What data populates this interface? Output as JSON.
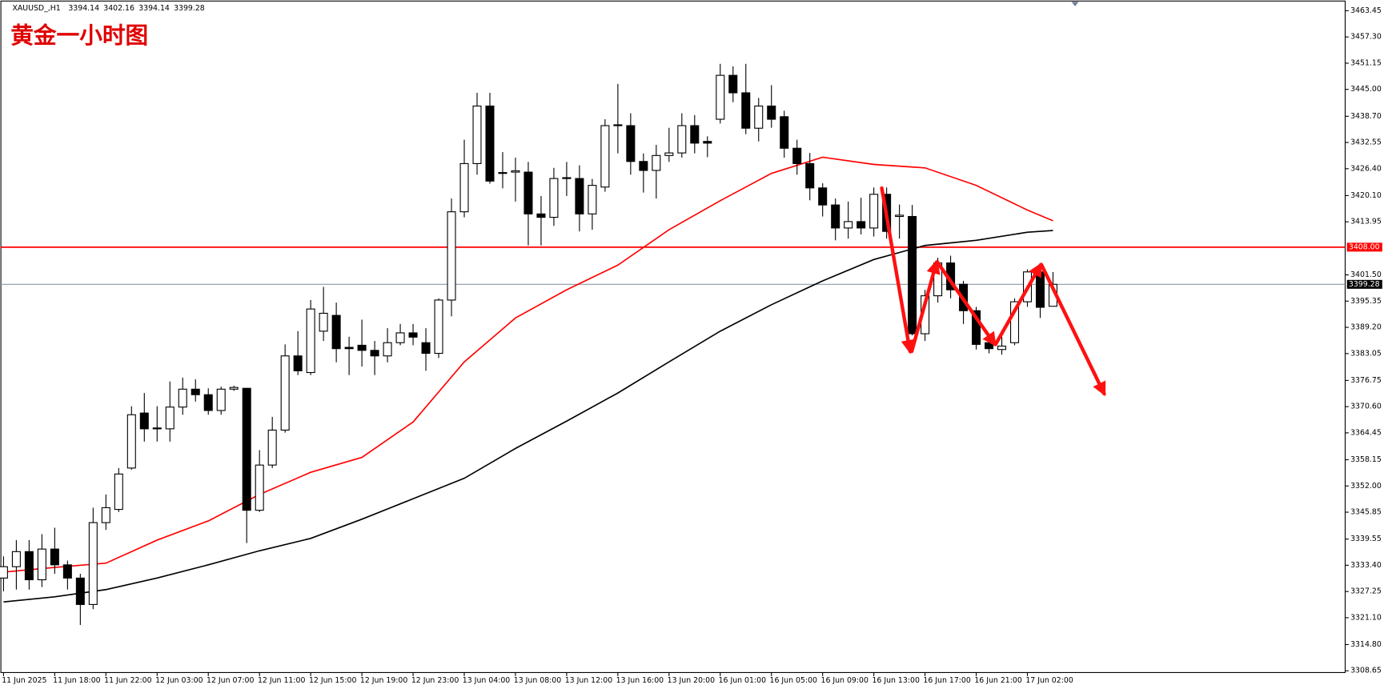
{
  "chart_data": {
    "type": "candlestick",
    "title": "黄金一小时图",
    "symbol": "XAUUSD_,H1",
    "categories": [
      "11 Jun 2025",
      null,
      null,
      null,
      "11 Jun 18:00",
      null,
      null,
      null,
      "11 Jun 22:00",
      null,
      null,
      null,
      "12 Jun 03:00",
      null,
      null,
      null,
      "12 Jun 07:00",
      null,
      null,
      null,
      "12 Jun 11:00",
      null,
      null,
      null,
      "12 Jun 15:00",
      null,
      null,
      null,
      "12 Jun 19:00",
      null,
      null,
      null,
      "12 Jun 23:00",
      null,
      null,
      null,
      "13 Jun 04:00",
      null,
      null,
      null,
      "13 Jun 08:00",
      null,
      null,
      null,
      "13 Jun 12:00",
      null,
      null,
      null,
      "13 Jun 16:00",
      null,
      null,
      null,
      "13 Jun 20:00",
      null,
      null,
      null,
      "16 Jun 01:00",
      null,
      null,
      null,
      "16 Jun 05:00",
      null,
      null,
      null,
      "16 Jun 09:00",
      null,
      null,
      null,
      "16 Jun 13:00",
      null,
      null,
      null,
      "16 Jun 17:00",
      null,
      null,
      null,
      "16 Jun 21:00",
      null,
      null,
      null,
      "17 Jun 02:00",
      null,
      null
    ],
    "open": [
      3330.4,
      3333.07,
      3336.6,
      3330.0,
      3337.2,
      3333.5,
      3330.4,
      3324.2,
      3343.4,
      3346.5,
      3356.2,
      3369.1,
      3365.4,
      3365.4,
      3370.5,
      3374.7,
      3373.4,
      3369.7,
      3374.7,
      3374.9,
      3346.3,
      3356.9,
      3365.1,
      3382.5,
      3378.6,
      3388.3,
      3392.0,
      3384.5,
      3385.0,
      3383.8,
      3382.5,
      3385.6,
      3387.9,
      3385.6,
      3383.1,
      3395.6,
      3416.3,
      3427.6,
      3441.1,
      3425.5,
      3425.6,
      3425.6,
      3415.8,
      3415.0,
      3424.1,
      3424.1,
      3415.8,
      3422.1,
      3436.5,
      3436.5,
      3428.1,
      3426.0,
      3429.5,
      3430.1,
      3436.5,
      3432.8,
      3438.0,
      3448.3,
      3444.2,
      3435.9,
      3441.1,
      3438.6,
      3431.2,
      3427.6,
      3421.9,
      3417.9,
      3412.5,
      3414.0,
      3412.5,
      3420.4,
      3415.2,
      3415.2,
      3387.7,
      3396.6,
      3404.3,
      3399.3,
      3393.1,
      3385.6,
      3384.0,
      3385.6,
      3395.2,
      3402.2,
      3394.14
    ],
    "high": [
      3335.5,
      3339.3,
      3339.3,
      3340.7,
      3342.2,
      3334.5,
      3331.4,
      3346.9,
      3350.0,
      3356.2,
      3370.7,
      3373.8,
      3370.7,
      3376.5,
      3377.4,
      3377.0,
      3374.9,
      3375.3,
      3375.5,
      3375.0,
      3360.4,
      3368.2,
      3385.2,
      3388.3,
      3395.6,
      3398.7,
      3395.0,
      3387.0,
      3391.0,
      3386.0,
      3389.0,
      3390.0,
      3390.0,
      3389.0,
      3396.0,
      3419.4,
      3433.2,
      3444.2,
      3444.2,
      3430.3,
      3429.0,
      3428.0,
      3420.0,
      3426.6,
      3428.0,
      3427.2,
      3424.0,
      3438.0,
      3446.3,
      3439.4,
      3430.0,
      3432.0,
      3436.0,
      3439.4,
      3439.0,
      3434.0,
      3451.0,
      3450.4,
      3451.0,
      3443.0,
      3446.0,
      3440.0,
      3433.2,
      3430.1,
      3423.0,
      3419.4,
      3418.7,
      3419.6,
      3422.0,
      3422.0,
      3418.0,
      3417.9,
      3398.0,
      3405.5,
      3406.0,
      3400.1,
      3394.0,
      3387.0,
      3387.0,
      3396.0,
      3402.8,
      3404.3,
      3402.16
    ],
    "low": [
      3327.3,
      3327.7,
      3327.7,
      3328.3,
      3331.4,
      3327.7,
      3319.4,
      3323.1,
      3341.7,
      3345.9,
      3355.8,
      3362.4,
      3362.4,
      3362.4,
      3368.7,
      3371.8,
      3368.7,
      3368.7,
      3374.3,
      3338.6,
      3345.9,
      3356.2,
      3364.5,
      3378.0,
      3378.0,
      3386.0,
      3381.0,
      3378.0,
      3380.0,
      3378.0,
      3381.0,
      3385.0,
      3385.0,
      3379.0,
      3382.0,
      3391.8,
      3415.0,
      3425.0,
      3422.9,
      3421.8,
      3418.7,
      3408.4,
      3408.4,
      3413.0,
      3420.0,
      3411.7,
      3412.1,
      3421.0,
      3430.0,
      3425.0,
      3420.8,
      3419.4,
      3428.0,
      3429.0,
      3430.0,
      3429.1,
      3437.0,
      3442.0,
      3434.5,
      3432.8,
      3436.0,
      3429.0,
      3425.0,
      3419.0,
      3415.2,
      3409.6,
      3410.0,
      3411.0,
      3410.5,
      3410.0,
      3410.0,
      3387.3,
      3386.0,
      3395.0,
      3396.0,
      3390.0,
      3384.0,
      3383.1,
      3382.8,
      3385.0,
      3394.0,
      3391.4,
      3394.14
    ],
    "close": [
      3333.07,
      3336.6,
      3330.0,
      3337.2,
      3333.5,
      3330.4,
      3324.2,
      3343.4,
      3346.9,
      3354.8,
      3368.7,
      3365.4,
      3365.6,
      3370.5,
      3374.7,
      3373.4,
      3369.7,
      3374.7,
      3375.1,
      3346.3,
      3356.9,
      3365.1,
      3382.5,
      3379.0,
      3393.5,
      3392.5,
      3384.2,
      3384.2,
      3383.8,
      3382.5,
      3385.6,
      3387.9,
      3386.9,
      3383.1,
      3395.6,
      3416.3,
      3427.6,
      3441.1,
      3423.5,
      3425.3,
      3425.9,
      3415.8,
      3415.0,
      3424.1,
      3424.3,
      3415.8,
      3422.5,
      3436.5,
      3436.7,
      3428.1,
      3426.0,
      3429.5,
      3430.1,
      3436.5,
      3432.4,
      3432.4,
      3448.3,
      3444.2,
      3435.9,
      3441.1,
      3438.0,
      3431.2,
      3427.6,
      3421.9,
      3417.9,
      3412.5,
      3414.0,
      3412.5,
      3420.4,
      3411.7,
      3415.5,
      3387.7,
      3396.6,
      3404.3,
      3398.0,
      3393.1,
      3385.2,
      3384.2,
      3384.8,
      3395.2,
      3402.2,
      3393.9,
      3399.28
    ],
    "ma": [
      {
        "color": "#ff0000",
        "x": [
          0,
          4,
          8,
          12,
          16,
          20,
          24,
          28,
          32,
          36,
          40,
          44,
          48,
          52,
          56,
          60,
          64,
          68,
          72,
          76,
          80,
          82
        ],
        "values": [
          3331.8,
          3332.9,
          3333.9,
          3339.3,
          3343.8,
          3350.0,
          3355.2,
          3358.7,
          3367.0,
          3381.1,
          3391.4,
          3398.0,
          3403.8,
          3412.1,
          3418.9,
          3425.3,
          3429.1,
          3427.4,
          3426.6,
          3422.5,
          3416.7,
          3414.2
        ]
      },
      {
        "color": "#000000",
        "x": [
          0,
          4,
          8,
          12,
          16,
          20,
          24,
          28,
          32,
          36,
          40,
          44,
          48,
          52,
          56,
          60,
          64,
          68,
          72,
          76,
          80,
          82
        ],
        "values": [
          3324.8,
          3326.0,
          3327.7,
          3330.4,
          3333.5,
          3336.8,
          3339.7,
          3344.2,
          3349.0,
          3353.8,
          3360.8,
          3367.2,
          3373.8,
          3381.1,
          3388.3,
          3394.5,
          3400.1,
          3405.1,
          3408.4,
          3409.6,
          3411.5,
          3411.9
        ]
      }
    ],
    "hlines": [
      {
        "value": 3408,
        "label": "3408.00",
        "color": "#ff0000"
      },
      {
        "value": 3399.28,
        "label": "3399.28",
        "color": "#8c9aa8"
      }
    ],
    "up_color": "#ffffff",
    "down_color": "#000000",
    "ylim": [
      3308.24,
      3465.93
    ],
    "yticks": [
      3463.45,
      {
        "value": 3457.3,
        "label": "3457.30"
      },
      3451.15,
      {
        "value": 3445,
        "label": "3445.00"
      },
      {
        "value": 3438.7,
        "label": "3438.70"
      },
      3432.55,
      {
        "value": 3426.4,
        "label": "3426.40"
      },
      {
        "value": 3420.1,
        "label": "3420.10"
      },
      3413.95,
      {
        "value": 3401.5,
        "label": "3401.50"
      },
      3395.35,
      {
        "value": 3389.2,
        "label": "3389.20"
      },
      3383.05,
      3376.75,
      {
        "value": 3370.6,
        "label": "3370.60"
      },
      3364.45,
      3358.15,
      {
        "value": 3352,
        "label": "3352.00"
      },
      3345.85,
      3339.55,
      {
        "value": 3333.4,
        "label": "3333.40"
      },
      3327.25,
      {
        "value": 3321.1,
        "label": "3321.10"
      },
      {
        "value": 3314.8,
        "label": "3314.80"
      },
      3308.65
    ]
  }
}
